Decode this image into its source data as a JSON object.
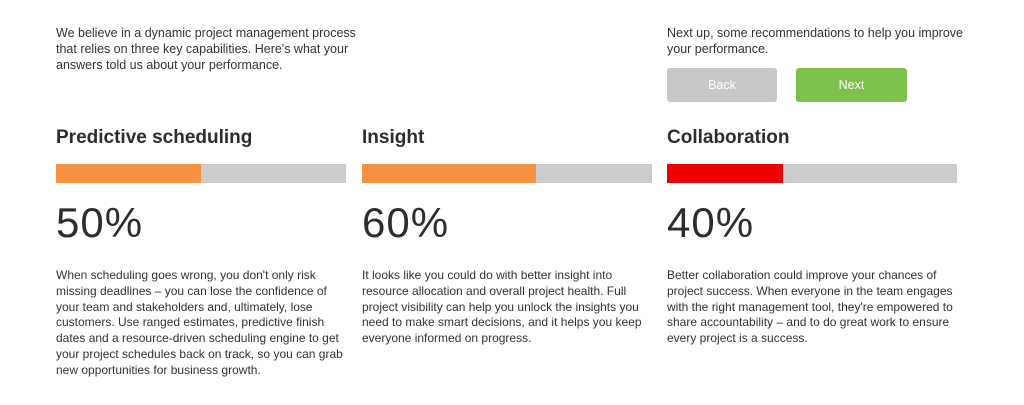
{
  "intro": {
    "text": "We believe in a dynamic project management process that relies on three key capabilities. Here's what your answers told us about your performance."
  },
  "next_up": {
    "text": "Next up, some recommendations to help you improve your performance.",
    "back_label": "Back",
    "next_label": "Next"
  },
  "colors": {
    "orange": "#f79140",
    "red": "#ee0000",
    "track": "#cccccc",
    "next_green": "#7cc14c",
    "back_gray": "#c8c8c8"
  },
  "capabilities": [
    {
      "title": "Predictive scheduling",
      "percent_text": "50%",
      "level": 0.5,
      "fill_color": "#f79140",
      "description": "When scheduling goes wrong, you don't only risk missing deadlines – you can lose the confidence of your team and stakeholders and, ultimately, lose customers. Use ranged estimates, predictive finish dates and a resource-driven scheduling engine to get your project schedules back on track, so you can grab new opportunities for business growth."
    },
    {
      "title": "Insight",
      "percent_text": "60%",
      "level": 0.6,
      "fill_color": "#f79140",
      "description": "It looks like you could do with better insight into resource allocation and overall project health. Full project visibility can help you unlock the insights you need to make smart decisions, and it helps you keep everyone informed on progress."
    },
    {
      "title": "Collaboration",
      "percent_text": "40%",
      "level": 0.4,
      "fill_color": "#ee0000",
      "description": "Better collaboration could improve your chances of project success. When everyone in the team engages with the right management tool, they're empowered to share accountability – and to do great work to ensure every project is a success."
    }
  ]
}
